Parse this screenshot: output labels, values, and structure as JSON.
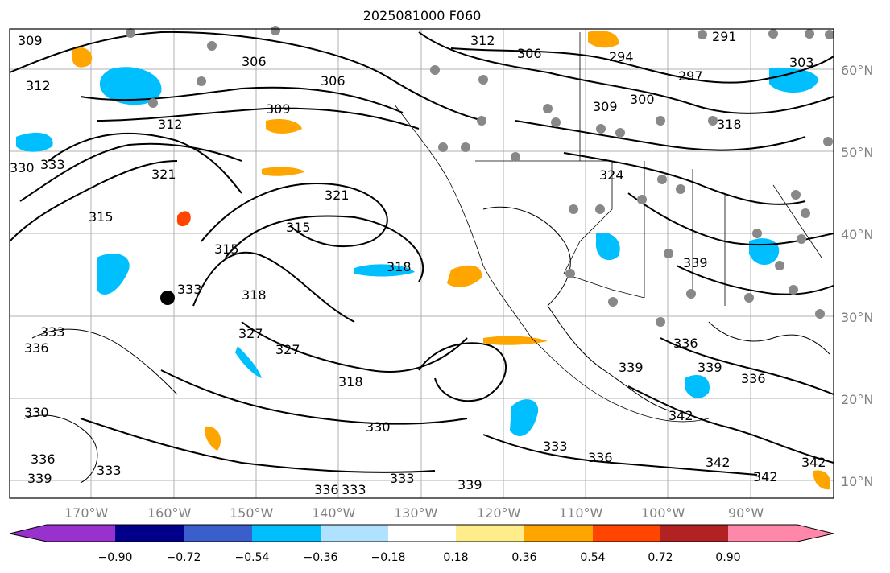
{
  "title": "2025081000 F060",
  "map": {
    "lat_labels": [
      "60°N",
      "50°N",
      "40°N",
      "30°N",
      "20°N",
      "10°N"
    ],
    "lon_labels": [
      "170°W",
      "160°W",
      "150°W",
      "140°W",
      "130°W",
      "120°W",
      "110°W",
      "100°W",
      "90°W"
    ],
    "contour_labels": [
      "309",
      "312",
      "306",
      "303",
      "300",
      "297",
      "294",
      "291",
      "318",
      "315",
      "321",
      "324",
      "327",
      "330",
      "333",
      "336",
      "339",
      "342"
    ],
    "station_marker_color": "#888888"
  },
  "colorbar": {
    "ticks": [
      "−0.90",
      "−0.72",
      "−0.54",
      "−0.36",
      "−0.18",
      "0.18",
      "0.36",
      "0.54",
      "0.72",
      "0.90"
    ],
    "colors": [
      "#9932cc",
      "#00008b",
      "#3a5fcd",
      "#00bfff",
      "#b0e2ff",
      "#ffffff",
      "#ffec8b",
      "#ffa500",
      "#ff4500",
      "#b22222",
      "#ff88aa"
    ]
  }
}
